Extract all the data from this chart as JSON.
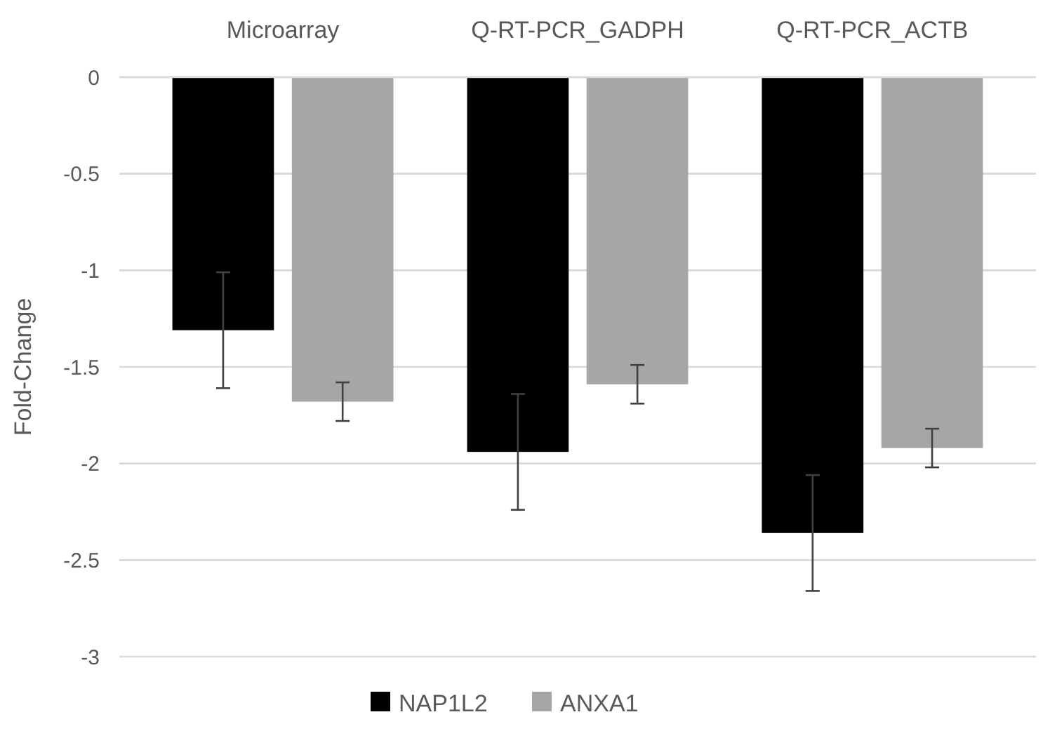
{
  "chart_data": {
    "type": "bar",
    "ylabel": "Fold-Change",
    "categories": [
      "Microarray",
      "Q-RT-PCR_GADPH",
      "Q-RT-PCR_ACTB"
    ],
    "series": [
      {
        "name": "NAP1L2",
        "color": "#000000",
        "values": [
          -1.31,
          -1.94,
          -2.36
        ],
        "errors": [
          0.3,
          0.3,
          0.3
        ]
      },
      {
        "name": "ANXA1",
        "color": "#a6a6a6",
        "values": [
          -1.68,
          -1.59,
          -1.92
        ],
        "errors": [
          0.1,
          0.1,
          0.1
        ]
      }
    ],
    "ylim": [
      -3,
      0
    ],
    "yticks": [
      -3,
      -2.5,
      -2,
      -1.5,
      -1,
      -0.5,
      0
    ],
    "grid": "y",
    "legend": "bottom"
  }
}
